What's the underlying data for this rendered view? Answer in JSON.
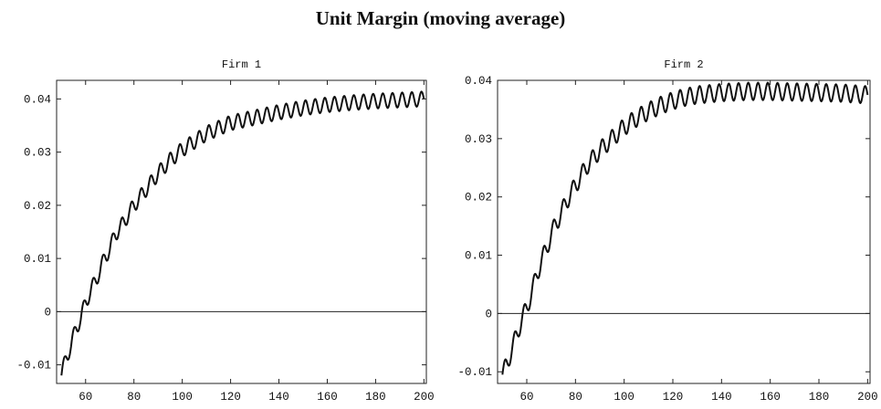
{
  "title": "Unit Margin (moving average)",
  "chart_data": [
    {
      "type": "line",
      "title": "Firm 1",
      "xlabel": "",
      "ylabel": "",
      "xlim": [
        48,
        201
      ],
      "ylim": [
        -0.0135,
        0.0435
      ],
      "xticks": [
        60,
        80,
        100,
        120,
        140,
        160,
        180,
        200
      ],
      "yticks": [
        -0.01,
        0,
        0.01,
        0.02,
        0.03,
        0.04
      ],
      "xtick_labels": [
        "60",
        "80",
        "100",
        "120",
        "140",
        "160",
        "180",
        "200"
      ],
      "ytick_labels": [
        "-0.01",
        "0",
        "0.01",
        "0.02",
        "0.03",
        "0.04"
      ],
      "zero_line": true,
      "grid": false,
      "series": [
        {
          "x": [
            50,
            52,
            54,
            56,
            58,
            60,
            62,
            64,
            66,
            68,
            70,
            72,
            74,
            76,
            78,
            80,
            85,
            90,
            95,
            100,
            105,
            110,
            115,
            120,
            125,
            130,
            140,
            150,
            160,
            170,
            180,
            190,
            200
          ],
          "values": [
            -0.012,
            -0.0085,
            -0.0065,
            -0.003,
            -0.0015,
            0.002,
            0.0035,
            0.006,
            0.0075,
            0.0105,
            0.0115,
            0.0145,
            0.0155,
            0.017,
            0.0185,
            0.02,
            0.023,
            0.026,
            0.0285,
            0.0305,
            0.032,
            0.0335,
            0.0345,
            0.0355,
            0.036,
            0.0365,
            0.0375,
            0.0383,
            0.0389,
            0.0393,
            0.0396,
            0.0398,
            0.04
          ]
        }
      ]
    },
    {
      "type": "line",
      "title": "Firm 2",
      "xlabel": "",
      "ylabel": "",
      "xlim": [
        48,
        201
      ],
      "ylim": [
        -0.012,
        0.04
      ],
      "xticks": [
        60,
        80,
        100,
        120,
        140,
        160,
        180,
        200
      ],
      "yticks": [
        -0.01,
        0,
        0.01,
        0.02,
        0.03,
        0.04
      ],
      "xtick_labels": [
        "60",
        "80",
        "100",
        "120",
        "140",
        "160",
        "180",
        "200"
      ],
      "ytick_labels": [
        "-0.01",
        "0",
        "0.01",
        "0.02",
        "0.03",
        "0.04"
      ],
      "zero_line": true,
      "grid": false,
      "series": [
        {
          "x": [
            50,
            52,
            54,
            56,
            58,
            60,
            62,
            64,
            66,
            68,
            70,
            72,
            74,
            76,
            78,
            80,
            85,
            90,
            95,
            100,
            105,
            110,
            115,
            120,
            125,
            130,
            140,
            150,
            160,
            170,
            180,
            190,
            200
          ],
          "values": [
            -0.0105,
            -0.0085,
            -0.006,
            -0.0035,
            -0.001,
            0.001,
            0.0035,
            0.0065,
            0.009,
            0.011,
            0.0135,
            0.0155,
            0.017,
            0.019,
            0.0205,
            0.022,
            0.0255,
            0.028,
            0.03,
            0.032,
            0.0335,
            0.0347,
            0.0357,
            0.0365,
            0.0371,
            0.0375,
            0.0379,
            0.0381,
            0.0381,
            0.038,
            0.0379,
            0.0378,
            0.0375
          ]
        }
      ]
    }
  ]
}
